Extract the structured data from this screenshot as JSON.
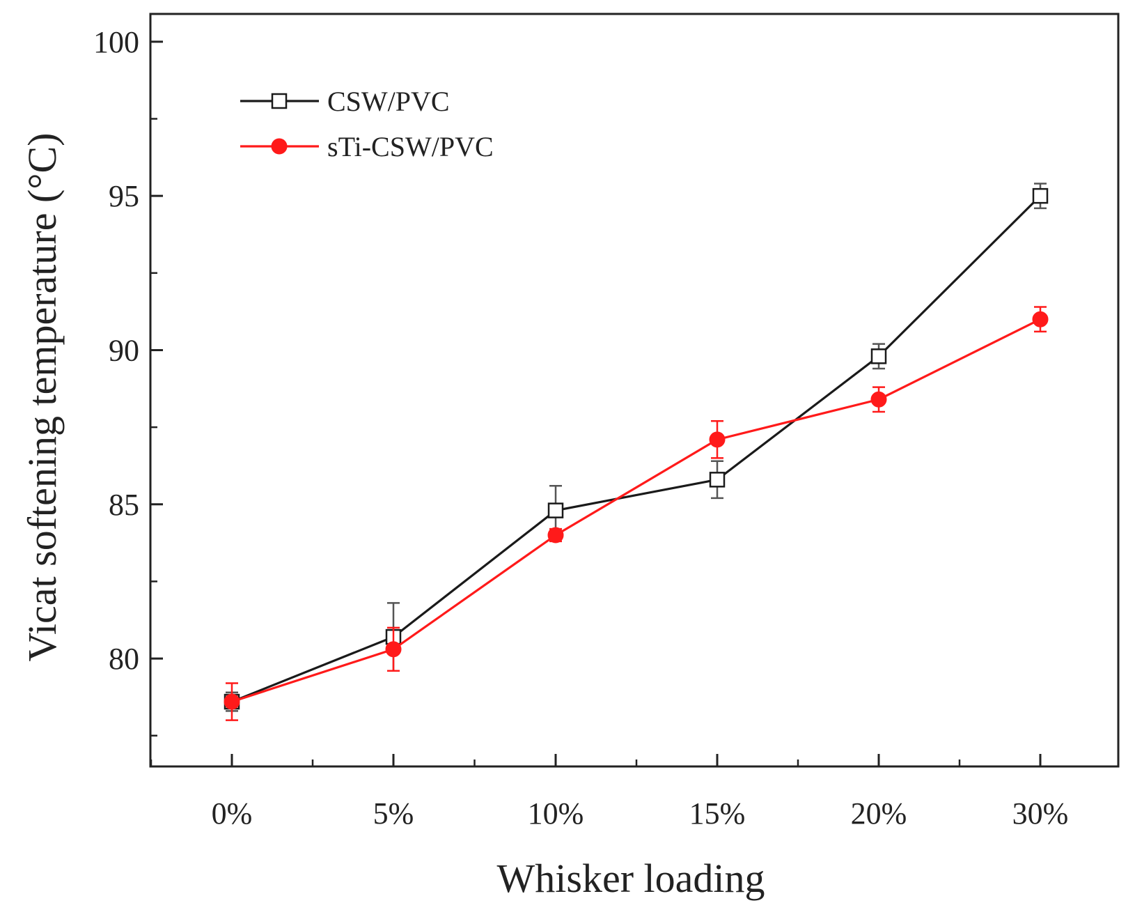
{
  "chart_data": {
    "type": "line",
    "title": "",
    "xlabel": "Whisker loading",
    "ylabel": "Vicat softening temperature (°C)",
    "categories": [
      "0%",
      "5%",
      "10%",
      "15%",
      "20%",
      "30%"
    ],
    "ylim": [
      76.5,
      100.9
    ],
    "yticks": [
      80,
      85,
      90,
      95,
      100
    ],
    "grid": false,
    "legend_position": "top-left",
    "series": [
      {
        "name": "CSW/PVC",
        "color": "#1a1a1a",
        "marker": "open-square",
        "values": [
          78.6,
          80.7,
          84.8,
          85.8,
          89.8,
          95.0
        ],
        "errors": [
          0.3,
          1.1,
          0.8,
          0.6,
          0.4,
          0.4
        ]
      },
      {
        "name": "sTi-CSW/PVC",
        "color": "#ff1a1a",
        "marker": "filled-circle",
        "values": [
          78.6,
          80.3,
          84.0,
          87.1,
          88.4,
          91.0
        ],
        "errors": [
          0.6,
          0.7,
          0.2,
          0.6,
          0.4,
          0.4
        ]
      }
    ]
  }
}
